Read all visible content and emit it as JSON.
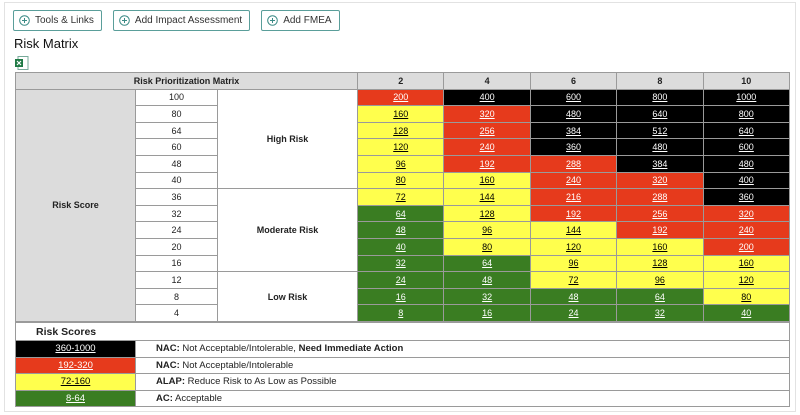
{
  "toolbar": {
    "buttons": [
      "Tools & Links",
      "Add Impact Assessment",
      "Add FMEA"
    ]
  },
  "header": {
    "title": "Risk Matrix"
  },
  "matrix": {
    "corner": "Risk Prioritization Matrix",
    "columns": [
      "2",
      "4",
      "6",
      "8",
      "10"
    ],
    "row_header": "Risk Score",
    "groups": [
      {
        "label": "High Risk",
        "span": 6
      },
      {
        "label": "Moderate Risk",
        "span": 5
      },
      {
        "label": "Low Risk",
        "span": 3
      }
    ],
    "rows": [
      {
        "label": "100",
        "cells": [
          {
            "value": 200,
            "color": "#e63a1c"
          },
          {
            "value": 400,
            "color": "#000000"
          },
          {
            "value": 600,
            "color": "#000000"
          },
          {
            "value": 800,
            "color": "#000000"
          },
          {
            "value": 1000,
            "color": "#000000"
          }
        ]
      },
      {
        "label": "80",
        "cells": [
          {
            "value": 160,
            "color": "#ffff4d"
          },
          {
            "value": 320,
            "color": "#e63a1c"
          },
          {
            "value": 480,
            "color": "#000000"
          },
          {
            "value": 640,
            "color": "#000000"
          },
          {
            "value": 800,
            "color": "#000000"
          }
        ]
      },
      {
        "label": "64",
        "cells": [
          {
            "value": 128,
            "color": "#ffff4d"
          },
          {
            "value": 256,
            "color": "#e63a1c"
          },
          {
            "value": 384,
            "color": "#000000"
          },
          {
            "value": 512,
            "color": "#000000"
          },
          {
            "value": 640,
            "color": "#000000"
          }
        ]
      },
      {
        "label": "60",
        "cells": [
          {
            "value": 120,
            "color": "#ffff4d"
          },
          {
            "value": 240,
            "color": "#e63a1c"
          },
          {
            "value": 360,
            "color": "#000000"
          },
          {
            "value": 480,
            "color": "#000000"
          },
          {
            "value": 600,
            "color": "#000000"
          }
        ]
      },
      {
        "label": "48",
        "cells": [
          {
            "value": 96,
            "color": "#ffff4d"
          },
          {
            "value": 192,
            "color": "#e63a1c"
          },
          {
            "value": 288,
            "color": "#e63a1c"
          },
          {
            "value": 384,
            "color": "#000000"
          },
          {
            "value": 480,
            "color": "#000000"
          }
        ]
      },
      {
        "label": "40",
        "cells": [
          {
            "value": 80,
            "color": "#ffff4d"
          },
          {
            "value": 160,
            "color": "#ffff4d"
          },
          {
            "value": 240,
            "color": "#e63a1c"
          },
          {
            "value": 320,
            "color": "#e63a1c"
          },
          {
            "value": 400,
            "color": "#000000"
          }
        ]
      },
      {
        "label": "36",
        "cells": [
          {
            "value": 72,
            "color": "#ffff4d"
          },
          {
            "value": 144,
            "color": "#ffff4d"
          },
          {
            "value": 216,
            "color": "#e63a1c"
          },
          {
            "value": 288,
            "color": "#e63a1c"
          },
          {
            "value": 360,
            "color": "#000000"
          }
        ]
      },
      {
        "label": "32",
        "cells": [
          {
            "value": 64,
            "color": "#3a7d22"
          },
          {
            "value": 128,
            "color": "#ffff4d"
          },
          {
            "value": 192,
            "color": "#e63a1c"
          },
          {
            "value": 256,
            "color": "#e63a1c"
          },
          {
            "value": 320,
            "color": "#e63a1c"
          }
        ]
      },
      {
        "label": "24",
        "cells": [
          {
            "value": 48,
            "color": "#3a7d22"
          },
          {
            "value": 96,
            "color": "#ffff4d"
          },
          {
            "value": 144,
            "color": "#ffff4d"
          },
          {
            "value": 192,
            "color": "#e63a1c"
          },
          {
            "value": 240,
            "color": "#e63a1c"
          }
        ]
      },
      {
        "label": "20",
        "cells": [
          {
            "value": 40,
            "color": "#3a7d22"
          },
          {
            "value": 80,
            "color": "#ffff4d"
          },
          {
            "value": 120,
            "color": "#ffff4d"
          },
          {
            "value": 160,
            "color": "#ffff4d"
          },
          {
            "value": 200,
            "color": "#e63a1c"
          }
        ]
      },
      {
        "label": "16",
        "cells": [
          {
            "value": 32,
            "color": "#3a7d22"
          },
          {
            "value": 64,
            "color": "#3a7d22"
          },
          {
            "value": 96,
            "color": "#ffff4d"
          },
          {
            "value": 128,
            "color": "#ffff4d"
          },
          {
            "value": 160,
            "color": "#ffff4d"
          }
        ]
      },
      {
        "label": "12",
        "cells": [
          {
            "value": 24,
            "color": "#3a7d22"
          },
          {
            "value": 48,
            "color": "#3a7d22"
          },
          {
            "value": 72,
            "color": "#ffff4d"
          },
          {
            "value": 96,
            "color": "#ffff4d"
          },
          {
            "value": 120,
            "color": "#ffff4d"
          }
        ]
      },
      {
        "label": "8",
        "cells": [
          {
            "value": 16,
            "color": "#3a7d22"
          },
          {
            "value": 32,
            "color": "#3a7d22"
          },
          {
            "value": 48,
            "color": "#3a7d22"
          },
          {
            "value": 64,
            "color": "#3a7d22"
          },
          {
            "value": 80,
            "color": "#ffff4d"
          }
        ]
      },
      {
        "label": "4",
        "cells": [
          {
            "value": 8,
            "color": "#3a7d22"
          },
          {
            "value": 16,
            "color": "#3a7d22"
          },
          {
            "value": 24,
            "color": "#3a7d22"
          },
          {
            "value": 32,
            "color": "#3a7d22"
          },
          {
            "value": 40,
            "color": "#3a7d22"
          }
        ]
      }
    ]
  },
  "legend": {
    "title": "Risk Scores",
    "items": [
      {
        "range": "360-1000",
        "color": "#000000",
        "parts": [
          {
            "text": "NAC:",
            "bold": true
          },
          {
            "text": " Not Acceptable/Intolerable, ",
            "bold": false
          },
          {
            "text": "Need Immediate Action",
            "bold": true
          }
        ]
      },
      {
        "range": "192-320",
        "color": "#e63a1c",
        "parts": [
          {
            "text": "NAC:",
            "bold": true
          },
          {
            "text": " Not Acceptable/Intolerable",
            "bold": false
          }
        ]
      },
      {
        "range": "72-160",
        "color": "#ffff4d",
        "parts": [
          {
            "text": "ALAP:",
            "bold": true
          },
          {
            "text": " Reduce Risk to As Low as Possible",
            "bold": false
          }
        ]
      },
      {
        "range": "8-64",
        "color": "#3a7d22",
        "parts": [
          {
            "text": "AC:",
            "bold": true
          },
          {
            "text": " Acceptable",
            "bold": false
          }
        ]
      }
    ]
  }
}
